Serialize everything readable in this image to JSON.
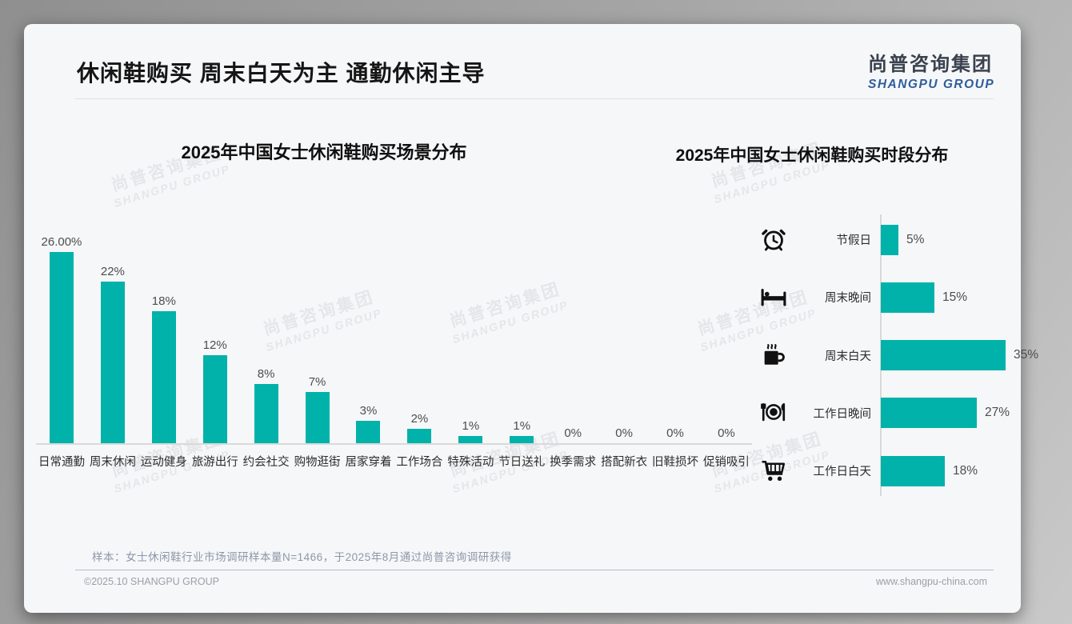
{
  "header": {
    "title": "休闲鞋购买 周末白天为主 通勤休闲主导",
    "logo_cn": "尚普咨询集团",
    "logo_en": "SHANGPU GROUP"
  },
  "watermark": {
    "line1": "尚普咨询集团",
    "line2": "SHANGPU GROUP"
  },
  "colors": {
    "bar": "#00b2a9",
    "logo_blue": "#2d5d9c"
  },
  "chart_data": [
    {
      "id": "scene",
      "type": "bar",
      "orientation": "vertical",
      "title": "2025年中国女士休闲鞋购买场景分布",
      "categories": [
        "日常通勤",
        "周末休闲",
        "运动健身",
        "旅游出行",
        "约会社交",
        "购物逛街",
        "居家穿着",
        "工作场合",
        "特殊活动",
        "节日送礼",
        "换季需求",
        "搭配新衣",
        "旧鞋损坏",
        "促销吸引"
      ],
      "values": [
        26,
        22,
        18,
        12,
        8,
        7,
        3,
        2,
        1,
        1,
        0,
        0,
        0,
        0
      ],
      "value_labels": [
        "26.00%",
        "22%",
        "18%",
        "12%",
        "8%",
        "7%",
        "3%",
        "2%",
        "1%",
        "1%",
        "0%",
        "0%",
        "0%",
        "0%"
      ],
      "xlabel": "",
      "ylabel": "",
      "ylim": [
        0,
        28
      ],
      "grid": false,
      "legend": "none",
      "bar_color": "#00b2a9"
    },
    {
      "id": "time",
      "type": "bar",
      "orientation": "horizontal",
      "title": "2025年中国女士休闲鞋购买时段分布",
      "categories": [
        "节假日",
        "周末晚间",
        "周末白天",
        "工作日晚间",
        "工作日白天"
      ],
      "values": [
        5,
        15,
        35,
        27,
        18
      ],
      "value_labels": [
        "5%",
        "15%",
        "35%",
        "27%",
        "18%"
      ],
      "icons": [
        "alarm-clock-icon",
        "bed-icon",
        "coffee-icon",
        "dining-icon",
        "shopping-cart-icon"
      ],
      "xlabel": "",
      "ylabel": "",
      "xlim": [
        0,
        40
      ],
      "grid": false,
      "legend": "none",
      "bar_color": "#00b2a9"
    }
  ],
  "footer": {
    "note": "样本：女士休闲鞋行业市场调研样本量N=1466，于2025年8月通过尚普咨询调研获得",
    "copyright": "©2025.10 SHANGPU GROUP",
    "website": "www.shangpu-china.com"
  }
}
